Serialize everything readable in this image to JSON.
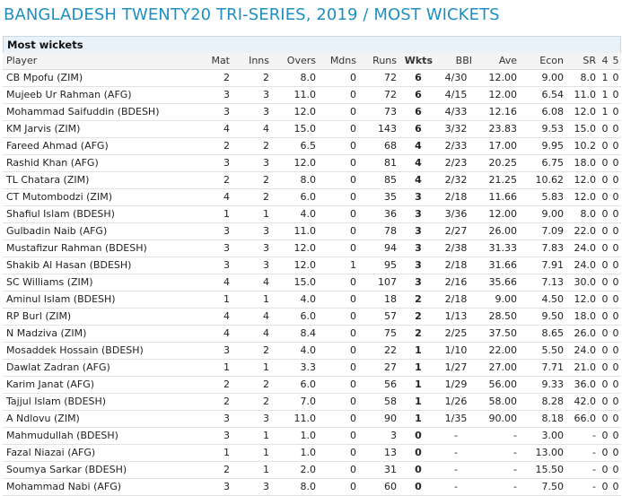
{
  "page_title": "BANGLADESH TWENTY20 TRI-SERIES, 2019 / MOST WICKETS",
  "table": {
    "caption": "Most wickets",
    "headers": [
      "Player",
      "Mat",
      "Inns",
      "Overs",
      "Mdns",
      "Runs",
      "Wkts",
      "BBI",
      "Ave",
      "Econ",
      "SR",
      "4",
      "5"
    ],
    "rows": [
      [
        "CB Mpofu (ZIM)",
        "2",
        "2",
        "8.0",
        "0",
        "72",
        "6",
        "4/30",
        "12.00",
        "9.00",
        "8.0",
        "1",
        "0"
      ],
      [
        "Mujeeb Ur Rahman (AFG)",
        "3",
        "3",
        "11.0",
        "0",
        "72",
        "6",
        "4/15",
        "12.00",
        "6.54",
        "11.0",
        "1",
        "0"
      ],
      [
        "Mohammad Saifuddin (BDESH)",
        "3",
        "3",
        "12.0",
        "0",
        "73",
        "6",
        "4/33",
        "12.16",
        "6.08",
        "12.0",
        "1",
        "0"
      ],
      [
        "KM Jarvis (ZIM)",
        "4",
        "4",
        "15.0",
        "0",
        "143",
        "6",
        "3/32",
        "23.83",
        "9.53",
        "15.0",
        "0",
        "0"
      ],
      [
        "Fareed Ahmad (AFG)",
        "2",
        "2",
        "6.5",
        "0",
        "68",
        "4",
        "2/33",
        "17.00",
        "9.95",
        "10.2",
        "0",
        "0"
      ],
      [
        "Rashid Khan (AFG)",
        "3",
        "3",
        "12.0",
        "0",
        "81",
        "4",
        "2/23",
        "20.25",
        "6.75",
        "18.0",
        "0",
        "0"
      ],
      [
        "TL Chatara (ZIM)",
        "2",
        "2",
        "8.0",
        "0",
        "85",
        "4",
        "2/32",
        "21.25",
        "10.62",
        "12.0",
        "0",
        "0"
      ],
      [
        "CT Mutombodzi (ZIM)",
        "4",
        "2",
        "6.0",
        "0",
        "35",
        "3",
        "2/18",
        "11.66",
        "5.83",
        "12.0",
        "0",
        "0"
      ],
      [
        "Shafiul Islam (BDESH)",
        "1",
        "1",
        "4.0",
        "0",
        "36",
        "3",
        "3/36",
        "12.00",
        "9.00",
        "8.0",
        "0",
        "0"
      ],
      [
        "Gulbadin Naib (AFG)",
        "3",
        "3",
        "11.0",
        "0",
        "78",
        "3",
        "2/27",
        "26.00",
        "7.09",
        "22.0",
        "0",
        "0"
      ],
      [
        "Mustafizur Rahman (BDESH)",
        "3",
        "3",
        "12.0",
        "0",
        "94",
        "3",
        "2/38",
        "31.33",
        "7.83",
        "24.0",
        "0",
        "0"
      ],
      [
        "Shakib Al Hasan (BDESH)",
        "3",
        "3",
        "12.0",
        "1",
        "95",
        "3",
        "2/18",
        "31.66",
        "7.91",
        "24.0",
        "0",
        "0"
      ],
      [
        "SC Williams (ZIM)",
        "4",
        "4",
        "15.0",
        "0",
        "107",
        "3",
        "2/16",
        "35.66",
        "7.13",
        "30.0",
        "0",
        "0"
      ],
      [
        "Aminul Islam (BDESH)",
        "1",
        "1",
        "4.0",
        "0",
        "18",
        "2",
        "2/18",
        "9.00",
        "4.50",
        "12.0",
        "0",
        "0"
      ],
      [
        "RP Burl (ZIM)",
        "4",
        "4",
        "6.0",
        "0",
        "57",
        "2",
        "1/13",
        "28.50",
        "9.50",
        "18.0",
        "0",
        "0"
      ],
      [
        "N Madziva (ZIM)",
        "4",
        "4",
        "8.4",
        "0",
        "75",
        "2",
        "2/25",
        "37.50",
        "8.65",
        "26.0",
        "0",
        "0"
      ],
      [
        "Mosaddek Hossain (BDESH)",
        "3",
        "2",
        "4.0",
        "0",
        "22",
        "1",
        "1/10",
        "22.00",
        "5.50",
        "24.0",
        "0",
        "0"
      ],
      [
        "Dawlat Zadran (AFG)",
        "1",
        "1",
        "3.3",
        "0",
        "27",
        "1",
        "1/27",
        "27.00",
        "7.71",
        "21.0",
        "0",
        "0"
      ],
      [
        "Karim Janat (AFG)",
        "2",
        "2",
        "6.0",
        "0",
        "56",
        "1",
        "1/29",
        "56.00",
        "9.33",
        "36.0",
        "0",
        "0"
      ],
      [
        "Tajjul Islam (BDESH)",
        "2",
        "2",
        "7.0",
        "0",
        "58",
        "1",
        "1/26",
        "58.00",
        "8.28",
        "42.0",
        "0",
        "0"
      ],
      [
        "A Ndlovu (ZIM)",
        "3",
        "3",
        "11.0",
        "0",
        "90",
        "1",
        "1/35",
        "90.00",
        "8.18",
        "66.0",
        "0",
        "0"
      ],
      [
        "Mahmudullah (BDESH)",
        "3",
        "1",
        "1.0",
        "0",
        "3",
        "0",
        "-",
        "-",
        "3.00",
        "-",
        "0",
        "0"
      ],
      [
        "Fazal Niazai (AFG)",
        "1",
        "1",
        "1.0",
        "0",
        "13",
        "0",
        "-",
        "-",
        "13.00",
        "-",
        "0",
        "0"
      ],
      [
        "Soumya Sarkar (BDESH)",
        "2",
        "1",
        "2.0",
        "0",
        "31",
        "0",
        "-",
        "-",
        "15.50",
        "-",
        "0",
        "0"
      ],
      [
        "Mohammad Nabi (AFG)",
        "3",
        "3",
        "8.0",
        "0",
        "60",
        "0",
        "-",
        "-",
        "7.50",
        "-",
        "0",
        "0"
      ]
    ]
  },
  "colors": {
    "title": "#1f8fc2",
    "caption_bg": "#e9f2f8",
    "header_bg": "#f4f4f4"
  }
}
